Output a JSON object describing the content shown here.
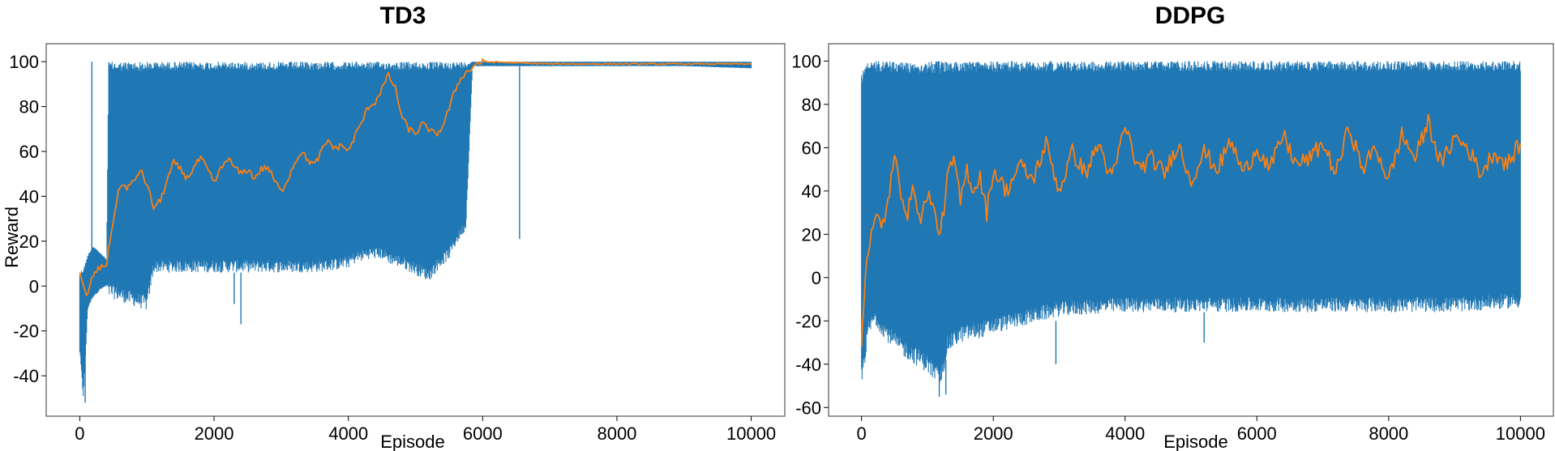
{
  "colors": {
    "raw": "#1f77b4",
    "smoothed": "#ff7f0e",
    "frame": "#555555"
  },
  "chart_data": [
    {
      "type": "line",
      "title": "TD3",
      "xlabel": "Episode",
      "ylabel": "Reward",
      "xlim": [
        -500,
        10500
      ],
      "ylim": [
        -58,
        108
      ],
      "xticks": [
        0,
        2000,
        4000,
        6000,
        8000,
        10000
      ],
      "yticks": [
        -40,
        -20,
        0,
        20,
        40,
        60,
        80,
        100
      ],
      "legend": "none",
      "grid": false,
      "series": [
        {
          "role": "raw",
          "envelope": {
            "x": [
              0,
              50,
              80,
              120,
              200,
              300,
              400,
              430,
              700,
              900,
              1000,
              1100,
              1200,
              1500,
              2000,
              2500,
              3000,
              3500,
              3800,
              4000,
              4100,
              4300,
              4500,
              4600,
              4800,
              5000,
              5200,
              5300,
              5500,
              5600,
              5750,
              5850,
              5950,
              6000,
              7000,
              8000,
              9000,
              10000
            ],
            "upper": [
              6,
              8,
              10,
              14,
              18,
              15,
              12,
              100,
              100,
              100,
              100,
              100,
              100,
              100,
              100,
              100,
              100,
              100,
              100,
              100,
              100,
              100,
              100,
              100,
              100,
              100,
              100,
              100,
              100,
              100,
              100,
              100,
              100,
              100,
              100,
              100,
              100,
              100
            ],
            "lower": [
              -30,
              -50,
              -35,
              -10,
              -5,
              -2,
              0,
              -5,
              -8,
              -10,
              -11,
              6,
              6,
              6,
              6,
              6,
              6,
              6,
              7,
              8,
              10,
              12,
              12,
              10,
              8,
              5,
              2,
              6,
              12,
              18,
              25,
              98,
              98,
              98,
              98,
              98,
              98,
              97
            ]
          },
          "spikes": [
            {
              "x": 180,
              "from": 10,
              "to": 100
            },
            {
              "x": 80,
              "from": -10,
              "to": -52
            },
            {
              "x": 2300,
              "from": 6,
              "to": -8
            },
            {
              "x": 2400,
              "from": 6,
              "to": -17
            },
            {
              "x": 6550,
              "from": 98,
              "to": 21
            }
          ]
        },
        {
          "role": "smoothed",
          "x": [
            0,
            100,
            150,
            200,
            300,
            400,
            500,
            600,
            700,
            800,
            900,
            1000,
            1100,
            1200,
            1300,
            1400,
            1500,
            1600,
            1700,
            1800,
            1900,
            2000,
            2100,
            2200,
            2300,
            2400,
            2500,
            2600,
            2700,
            2800,
            2900,
            3000,
            3100,
            3200,
            3300,
            3400,
            3500,
            3600,
            3700,
            3800,
            3900,
            4000,
            4100,
            4200,
            4300,
            4400,
            4500,
            4600,
            4700,
            4800,
            4900,
            5000,
            5100,
            5200,
            5300,
            5400,
            5500,
            5600,
            5700,
            5800,
            5900,
            6000,
            7000,
            8000,
            9000,
            10000
          ],
          "y": [
            5,
            -5,
            0,
            5,
            8,
            10,
            30,
            45,
            44,
            46,
            52,
            45,
            35,
            38,
            47,
            55,
            52,
            48,
            53,
            57,
            52,
            46,
            52,
            57,
            53,
            50,
            52,
            48,
            52,
            53,
            47,
            42,
            48,
            55,
            60,
            56,
            54,
            60,
            65,
            61,
            63,
            60,
            67,
            73,
            80,
            82,
            88,
            94,
            88,
            75,
            70,
            68,
            72,
            70,
            67,
            71,
            79,
            88,
            94,
            96,
            99,
            100,
            99,
            99,
            99,
            99
          ]
        }
      ]
    },
    {
      "type": "line",
      "title": "DDPG",
      "xlabel": "Episode",
      "ylabel": "",
      "xlim": [
        -500,
        10500
      ],
      "ylim": [
        -64,
        108
      ],
      "xticks": [
        0,
        2000,
        4000,
        6000,
        8000,
        10000
      ],
      "yticks": [
        -60,
        -40,
        -20,
        0,
        20,
        40,
        60,
        80,
        100
      ],
      "legend": "none",
      "grid": false,
      "series": [
        {
          "role": "raw",
          "envelope": {
            "x": [
              0,
              50,
              100,
              200,
              400,
              600,
              800,
              1000,
              1200,
              1300,
              1500,
              1800,
              2000,
              2500,
              3000,
              3500,
              4000,
              5000,
              6000,
              7000,
              8000,
              9000,
              10000
            ],
            "upper": [
              95,
              100,
              100,
              100,
              100,
              100,
              100,
              100,
              100,
              100,
              100,
              100,
              100,
              100,
              100,
              100,
              100,
              100,
              100,
              100,
              100,
              100,
              100
            ],
            "lower": [
              -50,
              -40,
              -28,
              -22,
              -30,
              -36,
              -40,
              -44,
              -52,
              -35,
              -30,
              -28,
              -26,
              -22,
              -18,
              -17,
              -16,
              -16,
              -16,
              -16,
              -16,
              -16,
              -14
            ]
          },
          "spikes": [
            {
              "x": 1180,
              "from": -40,
              "to": -55
            },
            {
              "x": 1280,
              "from": -38,
              "to": -54
            },
            {
              "x": 2950,
              "from": -20,
              "to": -40
            },
            {
              "x": 5200,
              "from": -16,
              "to": -30
            }
          ]
        },
        {
          "role": "smoothed",
          "x": [
            0,
            30,
            60,
            100,
            150,
            200,
            250,
            300,
            400,
            500,
            600,
            700,
            800,
            900,
            1000,
            1100,
            1200,
            1300,
            1400,
            1500,
            1600,
            1700,
            1800,
            1900,
            2000,
            2200,
            2400,
            2600,
            2800,
            3000,
            3200,
            3400,
            3600,
            3800,
            4000,
            4200,
            4400,
            4600,
            4800,
            5000,
            5200,
            5400,
            5600,
            5800,
            6000,
            6200,
            6400,
            6600,
            6800,
            7000,
            7200,
            7400,
            7600,
            7800,
            8000,
            8200,
            8400,
            8600,
            8800,
            9000,
            9200,
            9400,
            9600,
            9800,
            10000
          ],
          "y": [
            -30,
            -15,
            5,
            12,
            20,
            25,
            28,
            22,
            35,
            55,
            40,
            30,
            42,
            25,
            40,
            30,
            20,
            45,
            55,
            35,
            50,
            40,
            47,
            30,
            50,
            40,
            52,
            45,
            62,
            40,
            58,
            48,
            62,
            45,
            70,
            50,
            55,
            48,
            62,
            45,
            58,
            50,
            63,
            48,
            60,
            50,
            66,
            52,
            55,
            62,
            48,
            70,
            50,
            60,
            45,
            66,
            55,
            72,
            52,
            65,
            60,
            48,
            58,
            52,
            62
          ]
        }
      ]
    }
  ]
}
